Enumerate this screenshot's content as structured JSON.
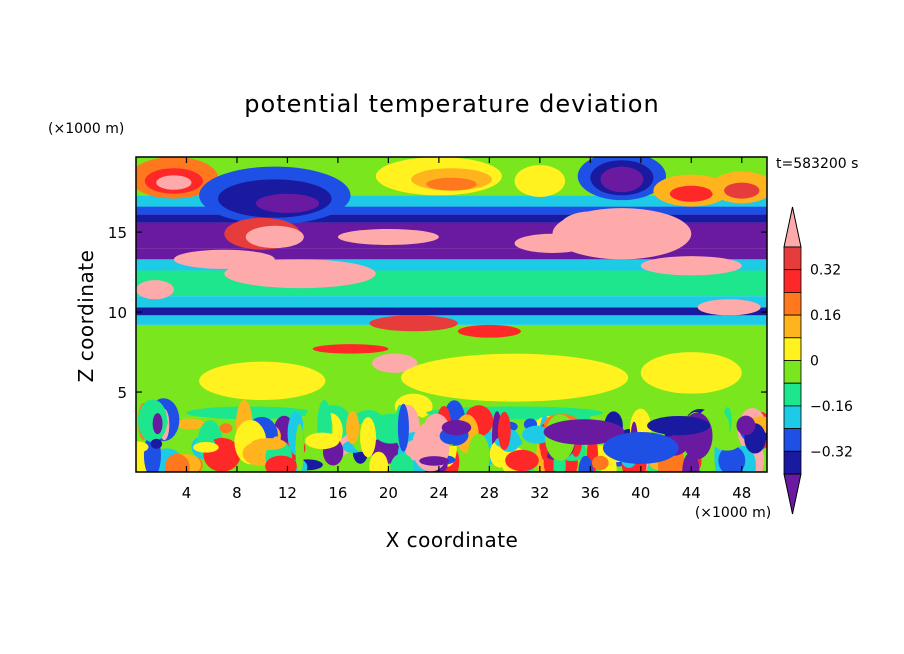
{
  "chart_data": {
    "type": "heatmap",
    "title": "potential temperature deviation",
    "xlabel": "X coordinate",
    "ylabel": "Z coordinate",
    "x_unit": "(×1000 m)",
    "y_unit": "(×1000 m)",
    "time_label": "t=583200 s",
    "xlim": [
      0,
      50
    ],
    "ylim": [
      0,
      19.7
    ],
    "x_ticks": [
      4,
      8,
      12,
      16,
      20,
      24,
      28,
      32,
      36,
      40,
      44,
      48
    ],
    "y_ticks": [
      5,
      10,
      15
    ],
    "colorbar": {
      "labels": [
        {
          "value": 0.32,
          "text": "0.32"
        },
        {
          "value": 0.16,
          "text": "0.16"
        },
        {
          "value": 0,
          "text": "0"
        },
        {
          "value": -0.16,
          "text": "−0.16"
        },
        {
          "value": -0.32,
          "text": "−0.32"
        }
      ],
      "levels": [
        -0.4,
        -0.32,
        -0.24,
        -0.16,
        -0.08,
        0,
        0.08,
        0.16,
        0.24,
        0.32,
        0.4
      ],
      "colors": [
        "#6a1aa0",
        "#1a1aa0",
        "#1e50e6",
        "#1ecbe6",
        "#1ee68c",
        "#7ae61e",
        "#fff21e",
        "#ffb41e",
        "#ff781e",
        "#ff2828",
        "#e63c3c",
        "#ffaaaa"
      ]
    }
  }
}
